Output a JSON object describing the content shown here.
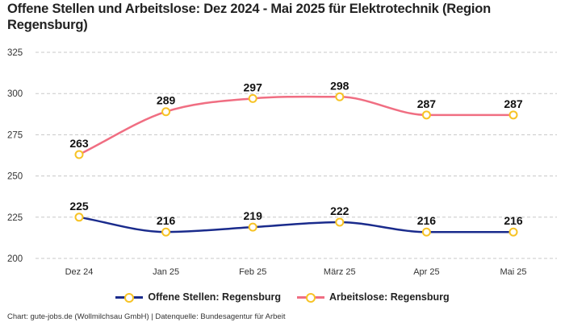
{
  "chart_data": {
    "type": "line",
    "title": "Offene Stellen und Arbeitslose: Dez 2024 - Mai 2025 für Elektrotechnik (Region Regensburg)",
    "xlabel": "",
    "ylabel": "",
    "categories": [
      "Dez 24",
      "Jan 25",
      "Feb 25",
      "März 25",
      "Apr 25",
      "Mai 25"
    ],
    "ylim": [
      200,
      325
    ],
    "yticks": [
      200,
      225,
      250,
      275,
      300,
      325
    ],
    "grid": true,
    "legend_position": "bottom-center",
    "series": [
      {
        "name": "Offene Stellen: Regensburg",
        "color": "#1a2b8c",
        "values": [
          225,
          216,
          219,
          222,
          216,
          216
        ]
      },
      {
        "name": "Arbeitslose: Regensburg",
        "color": "#f06e82",
        "values": [
          263,
          289,
          297,
          298,
          287,
          287
        ]
      }
    ],
    "marker_color": "#f7c325",
    "source": "Chart: gute-jobs.de (Wollmilchsau GmbH) | Datenquelle: Bundesagentur für Arbeit"
  }
}
